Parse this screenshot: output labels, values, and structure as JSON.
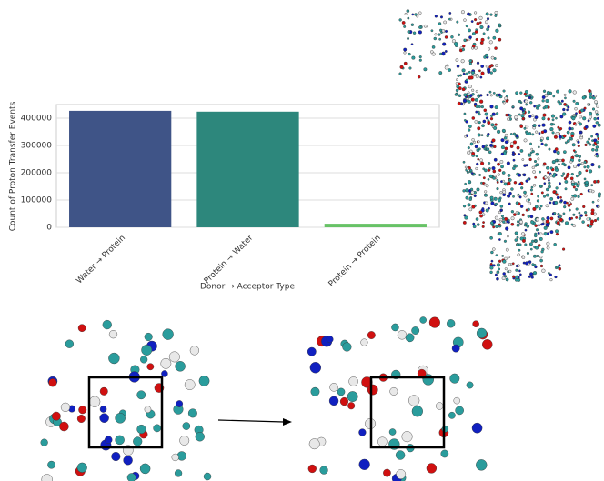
{
  "chart_data": {
    "type": "bar",
    "ylabel": "Count of Proton Transfer Events",
    "xlabel": "Donor → Acceptor Type",
    "categories": [
      "Water → Protein",
      "Protein → Water",
      "Protein → Protein"
    ],
    "values": [
      427000,
      424000,
      13000
    ],
    "colors": [
      "#3f5487",
      "#2d877c",
      "#67c266"
    ],
    "ylim": [
      0,
      450000
    ],
    "yticks": [
      0,
      100000,
      200000,
      300000,
      400000
    ],
    "grid": true
  }
}
